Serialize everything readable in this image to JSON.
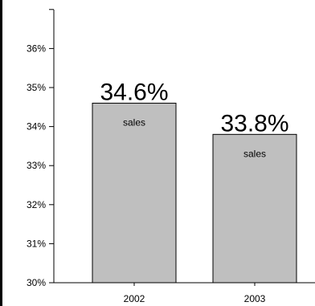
{
  "chart_data": {
    "type": "bar",
    "categories": [
      "2002",
      "2003"
    ],
    "values": [
      34.6,
      33.8
    ],
    "value_labels": [
      "34.6%",
      "33.8%"
    ],
    "inner_labels": [
      "sales",
      "sales"
    ],
    "y_ticks": [
      "30%",
      "31%",
      "32%",
      "33%",
      "34%",
      "35%",
      "36%"
    ],
    "ylim": [
      30,
      37
    ],
    "grid": false,
    "legend": "none",
    "bar_color": "#bfbfbf",
    "bar_edge_color": "#000000"
  }
}
